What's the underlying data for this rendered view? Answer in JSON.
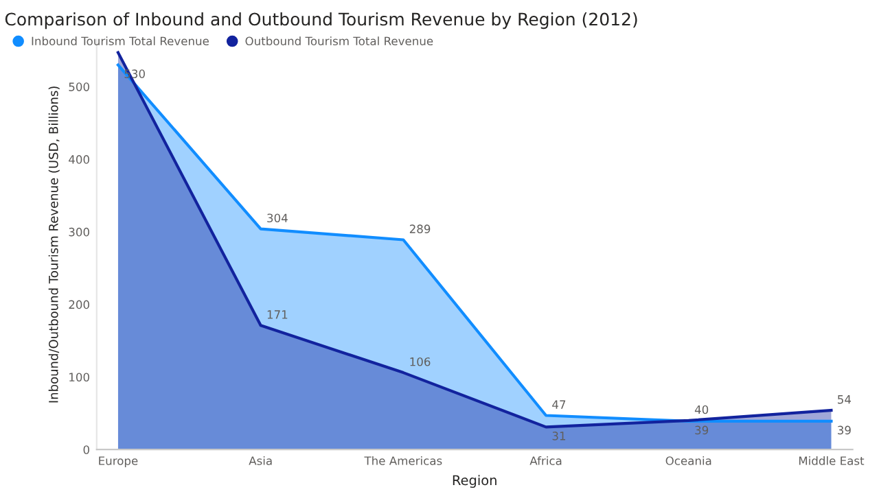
{
  "chart_data": {
    "type": "area",
    "title": "Comparison of Inbound and Outbound Tourism Revenue by Region (2012)",
    "xlabel": "Region",
    "ylabel": "Inbound/Outbound Tourism Revenue (USD, Billions)",
    "categories": [
      "Europe",
      "Asia",
      "The Americas",
      "Africa",
      "Oceania",
      "Middle East"
    ],
    "series": [
      {
        "name": "Inbound Tourism Total Revenue",
        "color": "#118dff",
        "values": [
          530,
          304,
          289,
          47,
          39,
          39
        ],
        "value_labels": [
          "530",
          "304",
          "289",
          "47",
          "39",
          "39"
        ]
      },
      {
        "name": "Outbound Tourism Total Revenue",
        "color": "#12239e",
        "values": [
          547,
          171,
          106,
          31,
          40,
          54
        ],
        "value_labels": [
          null,
          "171",
          "106",
          "31",
          "40",
          "54"
        ]
      }
    ],
    "ylim": [
      0,
      565
    ],
    "yticks": [
      0,
      100,
      200,
      300,
      400,
      500
    ],
    "grid": false,
    "legend": "top left"
  }
}
